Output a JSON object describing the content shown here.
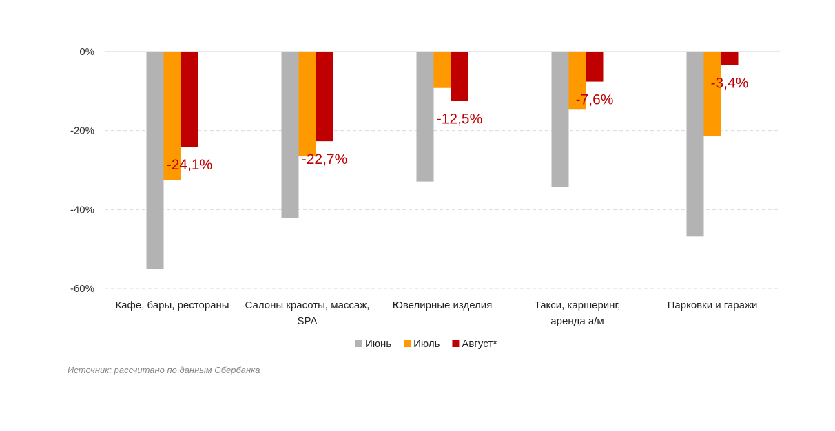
{
  "chart_data": {
    "type": "bar",
    "categories": [
      [
        "Кафе, бары, рестораны"
      ],
      [
        "Салоны красоты, массаж,",
        "SPA"
      ],
      [
        "Ювелирные изделия"
      ],
      [
        "Такси, каршеринг,",
        "аренда а/м"
      ],
      [
        "Парковки и гаражи"
      ]
    ],
    "series": [
      {
        "name": "Июнь",
        "color": "#b3b3b3",
        "values": [
          -55.0,
          -42.2,
          -32.9,
          -34.2,
          -46.8
        ]
      },
      {
        "name": "Июль",
        "color": "#ff9900",
        "values": [
          -32.5,
          -26.5,
          -9.2,
          -14.7,
          -21.4
        ]
      },
      {
        "name": "Август*",
        "color": "#c00000",
        "values": [
          -24.1,
          -22.7,
          -12.5,
          -7.6,
          -3.4
        ],
        "labels": [
          "-24,1%",
          "-22,7%",
          "-12,5%",
          "-7,6%",
          "-3,4%"
        ],
        "label_color": "#c00000"
      }
    ],
    "yticks": [
      {
        "value": 0,
        "label": "0%"
      },
      {
        "value": -20,
        "label": "-20%"
      },
      {
        "value": -40,
        "label": "-40%"
      },
      {
        "value": -60,
        "label": "-60%"
      }
    ],
    "ylim": [
      -60,
      0
    ],
    "grid": true,
    "legend_position": "bottom",
    "source_note": "Источник: рассчитано по данным Сбербанка"
  }
}
